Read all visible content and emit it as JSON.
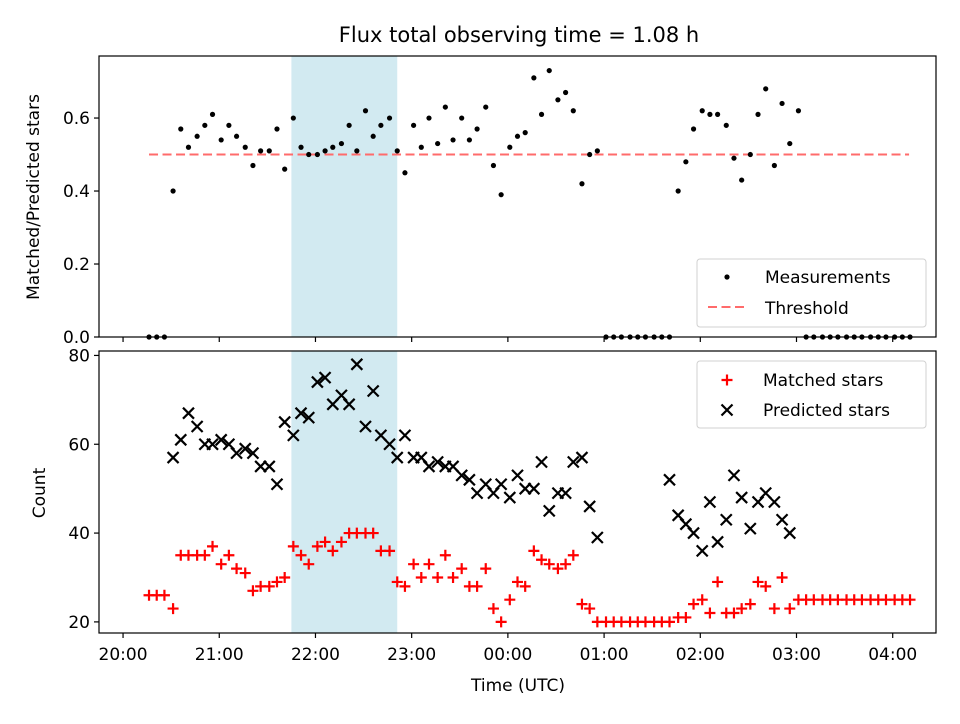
{
  "figure": {
    "title": "Flux total observing time = 1.08 h"
  },
  "colors": {
    "shade": "#add8e6",
    "threshold": "#ff6b6b",
    "matched": "#ff0000",
    "predicted": "#000000",
    "measurements": "#000000"
  },
  "chart_data": [
    {
      "type": "scatter",
      "title": "Flux total observing time = 1.08 h",
      "xlabel": "",
      "ylabel": "Matched/Predicted stars",
      "x_unit": "hours since 20:00 UTC",
      "xlim": [
        -0.25,
        8.45
      ],
      "ylim": [
        0,
        0.77
      ],
      "yticks": [
        0.0,
        0.2,
        0.4,
        0.6
      ],
      "ytick_labels": [
        "0.0",
        "0.2",
        "0.4",
        "0.6"
      ],
      "shaded_span": [
        1.75,
        2.85
      ],
      "grid": false,
      "legend": {
        "position": "lower-right",
        "entries": [
          "Measurements",
          "Threshold"
        ]
      },
      "threshold": {
        "name": "Threshold",
        "y": 0.5,
        "x": [
          0.27,
          8.17
        ],
        "style": "dashed"
      },
      "series": [
        {
          "name": "Measurements",
          "marker": "dot",
          "x": [
            0.27,
            0.35,
            0.43,
            0.52,
            0.6,
            0.68,
            0.77,
            0.85,
            0.93,
            1.02,
            1.1,
            1.18,
            1.27,
            1.35,
            1.43,
            1.52,
            1.6,
            1.68,
            1.77,
            1.85,
            1.93,
            2.02,
            2.1,
            2.18,
            2.27,
            2.35,
            2.43,
            2.52,
            2.6,
            2.68,
            2.77,
            2.85,
            2.93,
            3.02,
            3.1,
            3.18,
            3.27,
            3.35,
            3.43,
            3.52,
            3.6,
            3.68,
            3.77,
            3.85,
            3.93,
            4.02,
            4.1,
            4.18,
            4.27,
            4.35,
            4.43,
            4.52,
            4.6,
            4.68,
            4.77,
            4.85,
            4.93,
            5.02,
            5.1,
            5.18,
            5.27,
            5.35,
            5.43,
            5.52,
            5.6,
            5.68,
            5.77,
            5.85,
            5.93,
            6.02,
            6.1,
            6.18,
            6.27,
            6.35,
            6.43,
            6.52,
            6.6,
            6.68,
            6.77,
            6.85,
            6.93,
            7.02,
            7.1,
            7.18,
            7.27,
            7.35,
            7.43,
            7.52,
            7.6,
            7.68,
            7.77,
            7.85,
            7.93,
            8.02,
            8.1,
            8.18
          ],
          "y": [
            0.0,
            0.0,
            0.0,
            0.4,
            0.57,
            0.52,
            0.55,
            0.58,
            0.61,
            0.54,
            0.58,
            0.55,
            0.52,
            0.47,
            0.51,
            0.51,
            0.57,
            0.46,
            0.6,
            0.52,
            0.5,
            0.5,
            0.51,
            0.52,
            0.53,
            0.58,
            0.51,
            0.62,
            0.55,
            0.58,
            0.6,
            0.51,
            0.45,
            0.58,
            0.52,
            0.6,
            0.53,
            0.63,
            0.54,
            0.6,
            0.54,
            0.57,
            0.63,
            0.47,
            0.39,
            0.52,
            0.55,
            0.56,
            0.71,
            0.61,
            0.73,
            0.65,
            0.67,
            0.62,
            0.42,
            0.5,
            0.51,
            0.0,
            0.0,
            0.0,
            0.0,
            0.0,
            0.0,
            0.0,
            0.0,
            0.0,
            0.4,
            0.48,
            0.57,
            0.62,
            0.61,
            0.61,
            0.58,
            0.49,
            0.43,
            0.5,
            0.61,
            0.68,
            0.47,
            0.64,
            0.53,
            0.62,
            0.0,
            0.0,
            0.0,
            0.0,
            0.0,
            0.0,
            0.0,
            0.0,
            0.0,
            0.0,
            0.0,
            0.0,
            0.0,
            0.0
          ]
        }
      ]
    },
    {
      "type": "scatter",
      "title": "",
      "xlabel": "Time (UTC)",
      "ylabel": "Count",
      "x_unit": "hours since 20:00 UTC",
      "xlim": [
        -0.25,
        8.45
      ],
      "ylim": [
        17.5,
        81
      ],
      "yticks": [
        20,
        40,
        60,
        80
      ],
      "ytick_labels": [
        "20",
        "40",
        "60",
        "80"
      ],
      "xticks": [
        0,
        1,
        2,
        3,
        4,
        5,
        6,
        7,
        8
      ],
      "xtick_labels": [
        "20:00",
        "21:00",
        "22:00",
        "23:00",
        "00:00",
        "01:00",
        "02:00",
        "03:00",
        "04:00"
      ],
      "shaded_span": [
        1.75,
        2.85
      ],
      "grid": false,
      "legend": {
        "position": "upper-right",
        "entries": [
          "Matched stars",
          "Predicted stars"
        ]
      },
      "series": [
        {
          "name": "Matched stars",
          "marker": "plus",
          "x": [
            0.27,
            0.35,
            0.43,
            0.52,
            0.6,
            0.68,
            0.77,
            0.85,
            0.93,
            1.02,
            1.1,
            1.18,
            1.27,
            1.35,
            1.43,
            1.52,
            1.6,
            1.68,
            1.77,
            1.85,
            1.93,
            2.02,
            2.1,
            2.18,
            2.27,
            2.35,
            2.43,
            2.52,
            2.6,
            2.68,
            2.77,
            2.85,
            2.93,
            3.02,
            3.1,
            3.18,
            3.27,
            3.35,
            3.43,
            3.52,
            3.6,
            3.68,
            3.77,
            3.85,
            3.93,
            4.02,
            4.1,
            4.18,
            4.27,
            4.35,
            4.43,
            4.52,
            4.6,
            4.68,
            4.77,
            4.85,
            4.93,
            5.02,
            5.1,
            5.18,
            5.27,
            5.35,
            5.43,
            5.52,
            5.6,
            5.68,
            5.77,
            5.85,
            5.93,
            6.02,
            6.1,
            6.18,
            6.27,
            6.35,
            6.43,
            6.52,
            6.6,
            6.68,
            6.77,
            6.85,
            6.93,
            7.02,
            7.1,
            7.18,
            7.27,
            7.35,
            7.43,
            7.52,
            7.6,
            7.68,
            7.77,
            7.85,
            7.93,
            8.02,
            8.1,
            8.18
          ],
          "y": [
            26,
            26,
            26,
            23,
            35,
            35,
            35,
            35,
            37,
            33,
            35,
            32,
            31,
            27,
            28,
            28,
            29,
            30,
            37,
            35,
            33,
            37,
            38,
            36,
            38,
            40,
            40,
            40,
            40,
            36,
            36,
            29,
            28,
            33,
            30,
            33,
            30,
            35,
            30,
            32,
            28,
            28,
            32,
            23,
            20,
            25,
            29,
            28,
            36,
            34,
            33,
            32,
            33,
            35,
            24,
            23,
            20,
            20,
            20,
            20,
            20,
            20,
            20,
            20,
            20,
            20,
            21,
            21,
            24,
            25,
            22,
            29,
            22,
            22,
            23,
            24,
            29,
            28,
            23,
            30,
            23,
            25,
            25,
            25,
            25,
            25,
            25,
            25,
            25,
            25,
            25,
            25,
            25,
            25,
            25,
            25
          ]
        },
        {
          "name": "Predicted stars",
          "marker": "x",
          "x": [
            0.52,
            0.6,
            0.68,
            0.77,
            0.85,
            0.93,
            1.02,
            1.1,
            1.18,
            1.27,
            1.35,
            1.43,
            1.52,
            1.6,
            1.68,
            1.77,
            1.85,
            1.93,
            2.02,
            2.1,
            2.18,
            2.27,
            2.35,
            2.43,
            2.52,
            2.6,
            2.68,
            2.77,
            2.85,
            2.93,
            3.02,
            3.1,
            3.18,
            3.27,
            3.35,
            3.43,
            3.52,
            3.6,
            3.68,
            3.77,
            3.85,
            3.93,
            4.02,
            4.1,
            4.18,
            4.27,
            4.35,
            4.43,
            4.52,
            4.6,
            4.68,
            4.77,
            4.85,
            4.93,
            5.68,
            5.77,
            5.85,
            5.93,
            6.02,
            6.1,
            6.18,
            6.27,
            6.35,
            6.43,
            6.52,
            6.6,
            6.68,
            6.77,
            6.85,
            6.93
          ],
          "y": [
            57,
            61,
            67,
            64,
            60,
            60,
            61,
            60,
            58,
            59,
            58,
            55,
            55,
            51,
            65,
            62,
            67,
            66,
            74,
            75,
            69,
            71,
            69,
            78,
            64,
            72,
            62,
            60,
            57,
            62,
            57,
            57,
            55,
            56,
            55,
            55,
            53,
            52,
            49,
            51,
            49,
            51,
            48,
            53,
            50,
            50,
            56,
            45,
            49,
            49,
            56,
            57,
            46,
            39,
            52,
            44,
            42,
            40,
            36,
            47,
            38,
            43,
            53,
            48,
            41,
            47,
            49,
            47,
            43,
            40
          ]
        }
      ]
    }
  ]
}
